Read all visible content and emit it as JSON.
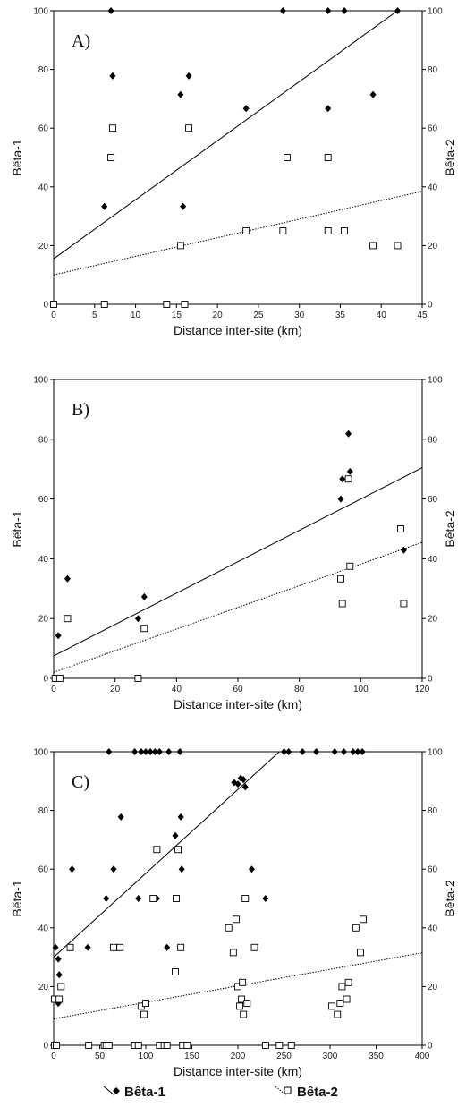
{
  "chart_data": [
    {
      "type": "scatter",
      "panel_label": "A)",
      "xlabel": "Distance inter-site (km)",
      "ylabel_left": "Bêta-1",
      "ylabel_right": "Bêta-2",
      "xlim": [
        0,
        45
      ],
      "ylim": [
        0,
        100
      ],
      "xticks": [
        0,
        5,
        10,
        15,
        20,
        25,
        30,
        35,
        40,
        45
      ],
      "yticks": [
        0,
        20,
        40,
        60,
        80,
        100
      ],
      "series": [
        {
          "name": "Bêta-1",
          "marker": "filled-diamond",
          "points": [
            [
              0,
              0
            ],
            [
              6.2,
              33.3
            ],
            [
              7,
              100
            ],
            [
              7.2,
              77.8
            ],
            [
              15.5,
              71.4
            ],
            [
              15.8,
              33.3
            ],
            [
              16.5,
              77.8
            ],
            [
              23.5,
              66.7
            ],
            [
              28,
              100
            ],
            [
              33.5,
              100
            ],
            [
              33.5,
              66.7
            ],
            [
              35.5,
              100
            ],
            [
              39,
              71.4
            ],
            [
              42,
              100
            ]
          ],
          "fit": [
            [
              0,
              15.5
            ],
            [
              42,
              100
            ]
          ],
          "line": "solid"
        },
        {
          "name": "Bêta-2",
          "marker": "open-square",
          "points": [
            [
              0,
              0
            ],
            [
              6.2,
              0
            ],
            [
              7.2,
              60
            ],
            [
              7,
              50
            ],
            [
              13.8,
              0
            ],
            [
              15.5,
              20
            ],
            [
              16,
              0
            ],
            [
              16.5,
              60
            ],
            [
              23.5,
              25
            ],
            [
              28,
              25
            ],
            [
              28.5,
              50
            ],
            [
              33.5,
              50
            ],
            [
              33.5,
              25
            ],
            [
              35.5,
              25
            ],
            [
              39,
              20
            ],
            [
              42,
              20
            ]
          ],
          "fit": [
            [
              0,
              10
            ],
            [
              45,
              38.5
            ]
          ],
          "line": "dotted"
        }
      ]
    },
    {
      "type": "scatter",
      "panel_label": "B)",
      "xlabel": "Distance inter-site (km)",
      "ylabel_left": "Bêta-1",
      "ylabel_right": "Bêta-2",
      "xlim": [
        0,
        120
      ],
      "ylim": [
        0,
        100
      ],
      "xticks": [
        0,
        20,
        40,
        60,
        80,
        100,
        120
      ],
      "yticks": [
        0,
        20,
        40,
        60,
        80,
        100
      ],
      "series": [
        {
          "name": "Bêta-1",
          "marker": "filled-diamond",
          "points": [
            [
              1.5,
              14.3
            ],
            [
              4.5,
              33.3
            ],
            [
              27.5,
              20
            ],
            [
              29.5,
              27.3
            ],
            [
              93.5,
              60
            ],
            [
              94,
              66.7
            ],
            [
              96,
              81.8
            ],
            [
              96.5,
              69.2
            ],
            [
              114,
              42.9
            ]
          ],
          "fit": [
            [
              0,
              7.5
            ],
            [
              120,
              70.5
            ]
          ],
          "line": "solid"
        },
        {
          "name": "Bêta-2",
          "marker": "open-square",
          "points": [
            [
              0.5,
              0
            ],
            [
              2,
              0
            ],
            [
              4.5,
              20
            ],
            [
              27.5,
              0
            ],
            [
              29.5,
              16.7
            ],
            [
              93.5,
              33.3
            ],
            [
              94,
              25
            ],
            [
              96,
              66.7
            ],
            [
              96.5,
              37.5
            ],
            [
              113,
              50
            ],
            [
              114,
              25
            ]
          ],
          "fit": [
            [
              0,
              2
            ],
            [
              120,
              45.5
            ]
          ],
          "line": "dotted"
        }
      ]
    },
    {
      "type": "scatter",
      "panel_label": "C)",
      "xlabel": "Distance inter-site (km)",
      "ylabel_left": "Bêta-1",
      "ylabel_right": "Bêta-2",
      "xlim": [
        0,
        400
      ],
      "ylim": [
        0,
        100
      ],
      "xticks": [
        0,
        50,
        100,
        150,
        200,
        250,
        300,
        350,
        400
      ],
      "yticks": [
        0,
        20,
        40,
        60,
        80,
        100
      ],
      "series": [
        {
          "name": "Bêta-1",
          "marker": "filled-diamond",
          "points": [
            [
              2,
              33.3
            ],
            [
              5,
              14.3
            ],
            [
              5,
              29.4
            ],
            [
              6,
              24
            ],
            [
              20,
              60
            ],
            [
              37,
              33.3
            ],
            [
              57,
              50
            ],
            [
              60,
              100
            ],
            [
              65,
              60
            ],
            [
              73,
              77.8
            ],
            [
              88,
              100
            ],
            [
              92,
              50
            ],
            [
              95,
              100
            ],
            [
              100,
              100
            ],
            [
              105,
              100
            ],
            [
              110,
              100
            ],
            [
              112,
              50
            ],
            [
              115,
              100
            ],
            [
              123,
              33.3
            ],
            [
              125,
              100
            ],
            [
              132,
              71.4
            ],
            [
              135,
              66.7
            ],
            [
              137,
              100
            ],
            [
              138,
              77.8
            ],
            [
              139,
              60
            ],
            [
              196,
              89.5
            ],
            [
              200,
              89
            ],
            [
              203,
              91
            ],
            [
              206,
              90.5
            ],
            [
              208,
              88
            ],
            [
              215,
              60
            ],
            [
              230,
              50
            ],
            [
              250,
              100
            ],
            [
              255,
              100
            ],
            [
              270,
              100
            ],
            [
              285,
              100
            ],
            [
              305,
              100
            ],
            [
              315,
              100
            ],
            [
              325,
              100
            ],
            [
              330,
              100
            ],
            [
              335,
              100
            ]
          ],
          "fit": [
            [
              0,
              30
            ],
            [
              245,
              100
            ]
          ],
          "line": "solid"
        },
        {
          "name": "Bêta-2",
          "marker": "open-square",
          "points": [
            [
              1,
              15.7
            ],
            [
              1,
              0
            ],
            [
              3,
              0
            ],
            [
              6,
              15.7
            ],
            [
              8,
              20
            ],
            [
              18,
              33.3
            ],
            [
              38,
              0
            ],
            [
              55,
              0
            ],
            [
              57,
              0
            ],
            [
              60,
              0
            ],
            [
              65,
              33.3
            ],
            [
              72,
              33.3
            ],
            [
              88,
              0
            ],
            [
              92,
              0
            ],
            [
              95,
              13.3
            ],
            [
              98,
              10.5
            ],
            [
              100,
              14.3
            ],
            [
              108,
              50
            ],
            [
              112,
              66.7
            ],
            [
              115,
              0
            ],
            [
              120,
              0
            ],
            [
              123,
              0
            ],
            [
              132,
              25
            ],
            [
              133,
              50
            ],
            [
              135,
              66.7
            ],
            [
              138,
              33.3
            ],
            [
              140,
              0
            ],
            [
              145,
              0
            ],
            [
              190,
              40
            ],
            [
              195,
              31.6
            ],
            [
              198,
              42.9
            ],
            [
              200,
              20
            ],
            [
              202,
              13.3
            ],
            [
              204,
              15.7
            ],
            [
              205,
              21.4
            ],
            [
              206,
              10.5
            ],
            [
              208,
              50
            ],
            [
              210,
              14.3
            ],
            [
              218,
              33.3
            ],
            [
              230,
              0
            ],
            [
              245,
              0
            ],
            [
              258,
              0
            ],
            [
              302,
              13.3
            ],
            [
              308,
              10.5
            ],
            [
              311,
              14.3
            ],
            [
              313,
              20
            ],
            [
              318,
              15.7
            ],
            [
              320,
              21.4
            ],
            [
              328,
              40
            ],
            [
              333,
              31.6
            ],
            [
              336,
              42.9
            ]
          ],
          "fit": [
            [
              0,
              9
            ],
            [
              400,
              31.5
            ]
          ],
          "line": "dotted"
        }
      ]
    }
  ],
  "legend": {
    "placement": "bottom-center",
    "entries": [
      {
        "label": "Bêta-1",
        "marker": "filled-diamond",
        "line": "solid"
      },
      {
        "label": "Bêta-2",
        "marker": "open-square",
        "line": "dotted"
      }
    ]
  }
}
